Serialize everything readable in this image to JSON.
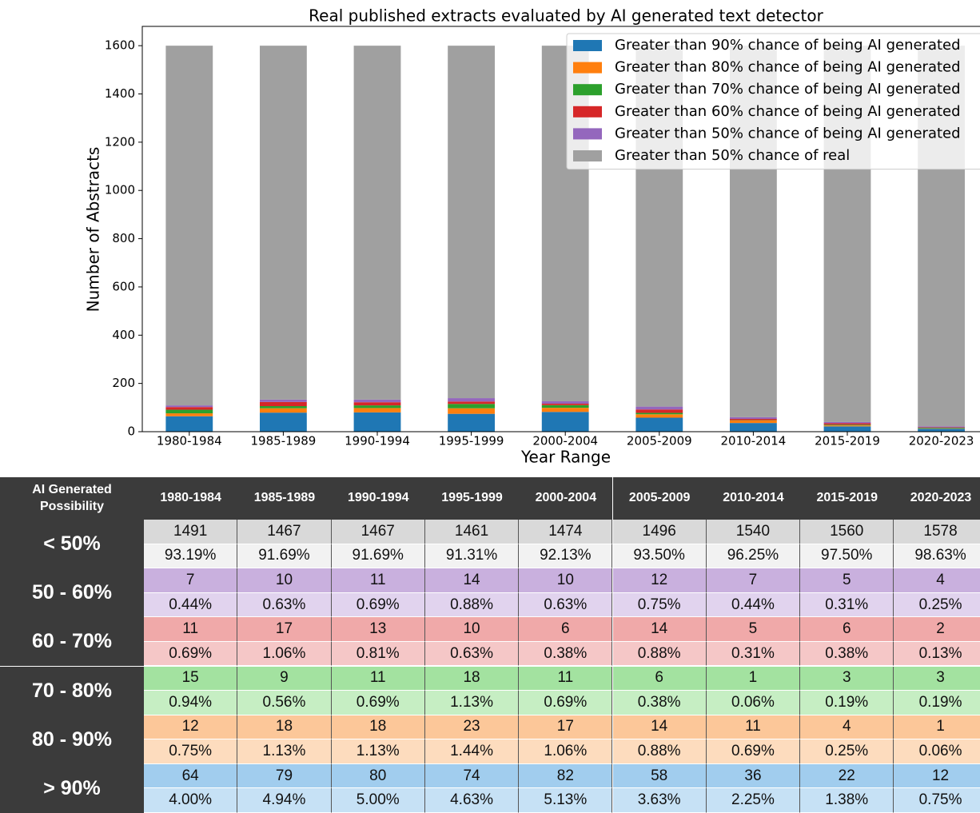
{
  "chart_data": {
    "type": "stacked_bar",
    "title": "Real published extracts evaluated by AI generated text detector",
    "x_label": "Year Range",
    "y_label": "Number of Abstracts",
    "categories": [
      "1980-1984",
      "1985-1989",
      "1990-1994",
      "1995-1999",
      "2000-2004",
      "2005-2009",
      "2010-2014",
      "2015-2019",
      "2020-2023"
    ],
    "series": [
      {
        "name": "Greater than 90% chance of being AI generated",
        "color": "#1f77b4",
        "values": [
          64,
          79,
          80,
          74,
          82,
          58,
          36,
          22,
          12
        ]
      },
      {
        "name": "Greater than 80% chance of being AI generated",
        "color": "#ff7f0e",
        "values": [
          12,
          18,
          18,
          23,
          17,
          14,
          11,
          4,
          1
        ]
      },
      {
        "name": "Greater than 70% chance of being AI generated",
        "color": "#2ca02c",
        "values": [
          15,
          9,
          11,
          18,
          11,
          6,
          1,
          3,
          3
        ]
      },
      {
        "name": "Greater than 60% chance of being AI generated",
        "color": "#d62728",
        "values": [
          11,
          17,
          13,
          10,
          6,
          14,
          5,
          6,
          2
        ]
      },
      {
        "name": "Greater than 50% chance of being AI generated",
        "color": "#9467bd",
        "values": [
          7,
          10,
          11,
          14,
          10,
          12,
          7,
          5,
          4
        ]
      },
      {
        "name": "Greater than 50% chance of real",
        "color": "#a0a0a0",
        "values": [
          1491,
          1467,
          1467,
          1461,
          1474,
          1496,
          1540,
          1560,
          1578
        ]
      }
    ],
    "ylim": [
      0,
      1680
    ],
    "yticks": [
      0,
      200,
      400,
      600,
      800,
      1000,
      1200,
      1400,
      1600
    ],
    "legend": "upper right"
  },
  "table": {
    "corner": "AI Generated Possibility",
    "columns": [
      "1980-1984",
      "1985-1989",
      "1990-1994",
      "1995-1999",
      "2000-2004",
      "2005-2009",
      "2010-2014",
      "2015-2019",
      "2020-2023"
    ],
    "rows": [
      {
        "label": "< 50%",
        "colors": [
          "#d9d9d9",
          "#f2f2f2"
        ],
        "counts": [
          1491,
          1467,
          1467,
          1461,
          1474,
          1496,
          1540,
          1560,
          1578
        ],
        "percents": [
          "93.19%",
          "91.69%",
          "91.69%",
          "91.31%",
          "92.13%",
          "93.50%",
          "96.25%",
          "97.50%",
          "98.63%"
        ]
      },
      {
        "label": "50 - 60%",
        "colors": [
          "#c9b0de",
          "#e1d3ee"
        ],
        "counts": [
          7,
          10,
          11,
          14,
          10,
          12,
          7,
          5,
          4
        ],
        "percents": [
          "0.44%",
          "0.63%",
          "0.69%",
          "0.88%",
          "0.63%",
          "0.75%",
          "0.44%",
          "0.31%",
          "0.25%"
        ]
      },
      {
        "label": "60 - 70%",
        "colors": [
          "#f0a9a9",
          "#f5c7c7"
        ],
        "counts": [
          11,
          17,
          13,
          10,
          6,
          14,
          5,
          6,
          2
        ],
        "percents": [
          "0.69%",
          "1.06%",
          "0.81%",
          "0.63%",
          "0.38%",
          "0.88%",
          "0.31%",
          "0.38%",
          "0.13%"
        ]
      },
      {
        "label": "70 - 80%",
        "colors": [
          "#a3e2a0",
          "#c6eec3"
        ],
        "counts": [
          15,
          9,
          11,
          18,
          11,
          6,
          1,
          3,
          3
        ],
        "percents": [
          "0.94%",
          "0.56%",
          "0.69%",
          "1.13%",
          "0.69%",
          "0.38%",
          "0.06%",
          "0.19%",
          "0.19%"
        ]
      },
      {
        "label": "80 - 90%",
        "colors": [
          "#fcc799",
          "#fddcbe"
        ],
        "counts": [
          12,
          18,
          18,
          23,
          17,
          14,
          11,
          4,
          1
        ],
        "percents": [
          "0.75%",
          "1.13%",
          "1.13%",
          "1.44%",
          "1.06%",
          "0.88%",
          "0.69%",
          "0.25%",
          "0.06%"
        ]
      },
      {
        "label": "> 90%",
        "colors": [
          "#a1cdee",
          "#c6e1f5"
        ],
        "counts": [
          64,
          79,
          80,
          74,
          82,
          58,
          36,
          22,
          12
        ],
        "percents": [
          "4.00%",
          "4.94%",
          "5.00%",
          "4.63%",
          "5.13%",
          "3.63%",
          "2.25%",
          "1.38%",
          "0.75%"
        ]
      }
    ]
  }
}
